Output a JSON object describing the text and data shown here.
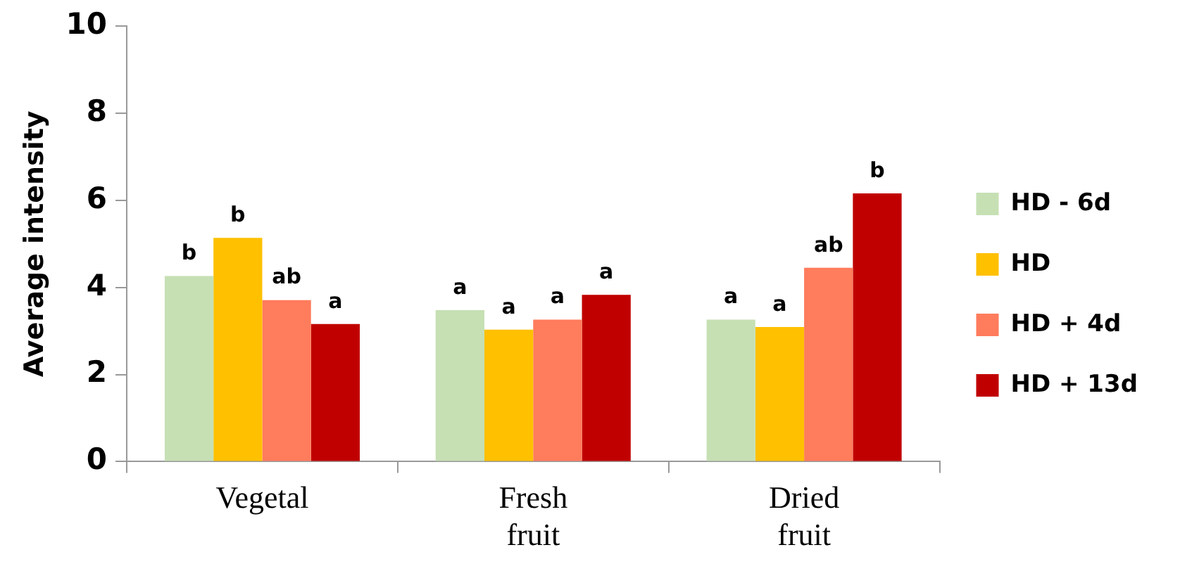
{
  "chart_data": {
    "type": "bar",
    "ylabel": "Average intensity",
    "categories": [
      "Vegetal",
      "Fresh fruit",
      "Dried fruit"
    ],
    "series": [
      {
        "name": "HD - 6d",
        "color": "#c6e0b4",
        "values": [
          4.26,
          3.48,
          3.26
        ],
        "value_labels": [
          "b",
          "a",
          "a"
        ]
      },
      {
        "name": "HD",
        "color": "#ffc000",
        "values": [
          5.14,
          3.03,
          3.09
        ],
        "value_labels": [
          "b",
          "a",
          "a"
        ]
      },
      {
        "name": "HD + 4d",
        "color": "#ff7c5c",
        "values": [
          3.71,
          3.26,
          4.45
        ],
        "value_labels": [
          "ab",
          "a",
          "ab"
        ]
      },
      {
        "name": "HD + 13d",
        "color": "#c00000",
        "values": [
          3.16,
          3.83,
          6.16
        ],
        "value_labels": [
          "a",
          "a",
          "b"
        ]
      }
    ],
    "ylim": [
      0,
      10
    ],
    "yticks": [
      0,
      2,
      4,
      6,
      8,
      10
    ],
    "grid": false,
    "legend": "right"
  }
}
